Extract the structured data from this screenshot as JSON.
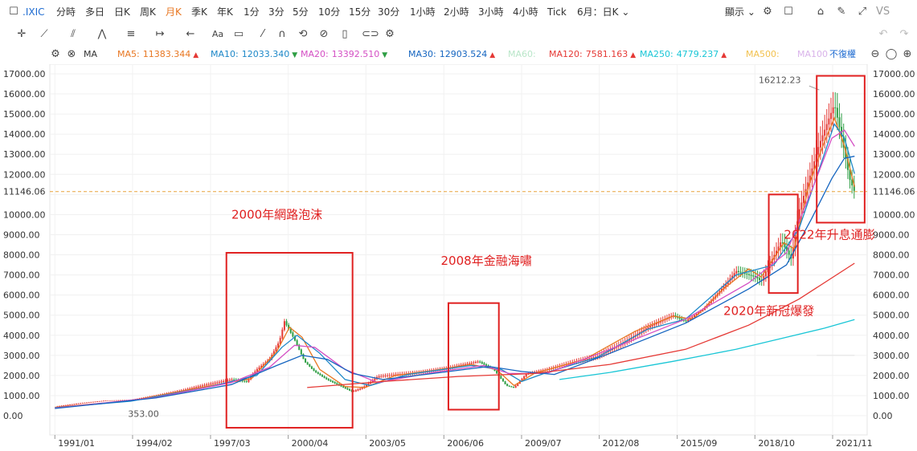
{
  "topbar": {
    "symbol": ".IXIC",
    "timeframes": [
      "分時",
      "多日",
      "日K",
      "周K",
      "月K",
      "季K",
      "年K",
      "1分",
      "3分",
      "5分",
      "10分",
      "15分",
      "30分",
      "1小時",
      "2小時",
      "3小時",
      "4小時",
      "Tick",
      "6月：日K"
    ],
    "active_timeframe": "月K",
    "display_label": "顯示",
    "vs_label": "VS"
  },
  "mabar": {
    "type_label": "MA",
    "items": [
      {
        "label": "MA5:",
        "value": "11383.344",
        "color": "#e87722",
        "arrow": "▲",
        "arrow_color": "#e53935"
      },
      {
        "label": "MA10:",
        "value": "12033.340",
        "color": "#1e88c8",
        "arrow": "▼",
        "arrow_color": "#2e9e44"
      },
      {
        "label": "MA20:",
        "value": "13392.510",
        "color": "#d44fc4",
        "arrow": "▼",
        "arrow_color": "#2e9e44"
      },
      {
        "label": "MA30:",
        "value": "12903.524",
        "color": "#1565c0",
        "arrow": "▲",
        "arrow_color": "#e53935"
      },
      {
        "label": "MA60:",
        "value": "",
        "color": "#b9e6c9",
        "arrow": "",
        "arrow_color": ""
      },
      {
        "label": "MA120:",
        "value": "7581.163",
        "color": "#e53935",
        "arrow": "▲",
        "arrow_color": "#e53935"
      },
      {
        "label": "MA250:",
        "value": "4779.237",
        "color": "#19c6d6",
        "arrow": "▲",
        "arrow_color": "#e53935"
      },
      {
        "label": "MA500:",
        "value": "",
        "color": "#f2c14e",
        "arrow": "",
        "arrow_color": ""
      },
      {
        "label": "MA100",
        "value": "",
        "color": "#d9b3ea",
        "arrow": "",
        "arrow_color": ""
      }
    ],
    "adjust_label": "不復權"
  },
  "chart_data": {
    "type": "line",
    "y_ticks": [
      "17000.00",
      "16000.00",
      "15000.00",
      "14000.00",
      "13000.00",
      "12000.00",
      "11000.00",
      "10000.00",
      "9000.00",
      "8000.00",
      "7000.00",
      "6000.00",
      "5000.00",
      "4000.00",
      "3000.00",
      "2000.00",
      "1000.00",
      "0.00"
    ],
    "x_ticks": [
      "1991/01",
      "1994/02",
      "1997/03",
      "2000/04",
      "2003/05",
      "2006/06",
      "2009/07",
      "2012/08",
      "2015/09",
      "2018/10",
      "2021/11"
    ],
    "ylim": [
      0,
      17000
    ],
    "xlim": [
      1990.8,
      2023.2
    ],
    "current_price": "11146.06",
    "current_value": 11146.06,
    "high_label": "16212.23",
    "low_label": "353.00",
    "price_series": {
      "name": "",
      "x": [
        1991.0,
        1992.0,
        1993.0,
        1994.0,
        1995.0,
        1996.0,
        1997.0,
        1998.0,
        1998.6,
        1999.0,
        1999.5,
        1999.9,
        2000.1,
        2000.5,
        2000.9,
        2001.3,
        2001.8,
        2002.3,
        2002.8,
        2003.2,
        2003.8,
        2004.5,
        2005.5,
        2006.5,
        2007.0,
        2007.8,
        2008.4,
        2008.9,
        2009.2,
        2009.7,
        2010.5,
        2011.5,
        2012.5,
        2013.5,
        2014.5,
        2015.5,
        2016.0,
        2016.7,
        2017.5,
        2018.0,
        2018.8,
        2019.0,
        2019.8,
        2020.2,
        2020.5,
        2020.9,
        2021.3,
        2021.9,
        2022.2,
        2022.5,
        2022.7
      ],
      "values": [
        450,
        620,
        750,
        780,
        1000,
        1250,
        1550,
        1800,
        1700,
        2300,
        2800,
        3700,
        4700,
        3800,
        2700,
        2200,
        1800,
        1500,
        1200,
        1400,
        1950,
        2050,
        2150,
        2350,
        2500,
        2700,
        2300,
        1500,
        1400,
        2100,
        2300,
        2650,
        2950,
        3600,
        4400,
        5000,
        4700,
        5300,
        6400,
        7200,
        6900,
        6700,
        8700,
        7800,
        10200,
        11800,
        13500,
        15500,
        13800,
        11800,
        11146
      ]
    },
    "series": [
      {
        "name": "MA5",
        "color": "#e87722",
        "x": [
          1991.0,
          1994.0,
          1997.0,
          1998.8,
          1999.8,
          2000.3,
          2000.8,
          2001.5,
          2002.5,
          2003.3,
          2004.5,
          2006.0,
          2007.5,
          2008.5,
          2009.2,
          2010.0,
          2012.0,
          2014.0,
          2015.5,
          2016.3,
          2017.5,
          2018.5,
          2019.0,
          2019.9,
          2020.3,
          2020.9,
          2021.5,
          2021.9,
          2022.3,
          2022.7
        ],
        "values": [
          420,
          740,
          1450,
          1850,
          3200,
          4400,
          3900,
          2300,
          1450,
          1400,
          2000,
          2250,
          2550,
          2300,
          1500,
          2100,
          2800,
          4200,
          4950,
          4800,
          6300,
          7300,
          6900,
          8600,
          8300,
          11500,
          13600,
          14800,
          13400,
          11383
        ]
      },
      {
        "name": "MA10",
        "color": "#1e88c8",
        "x": [
          1991.0,
          1994.0,
          1997.0,
          1999.0,
          2000.0,
          2000.6,
          2001.5,
          2002.5,
          2003.5,
          2005.0,
          2007.5,
          2008.7,
          2009.5,
          2010.5,
          2012.5,
          2014.5,
          2016.0,
          2018.0,
          2019.5,
          2020.5,
          2021.5,
          2021.9,
          2022.3,
          2022.7
        ],
        "values": [
          400,
          720,
          1400,
          2000,
          3400,
          4000,
          3100,
          1800,
          1500,
          2050,
          2500,
          2300,
          1700,
          2150,
          2900,
          4300,
          4800,
          7000,
          7500,
          9300,
          13000,
          14500,
          13800,
          12033
        ]
      },
      {
        "name": "MA20",
        "color": "#d44fc4",
        "x": [
          1991.0,
          1995.0,
          1998.0,
          1999.5,
          2000.5,
          2001.3,
          2002.5,
          2003.8,
          2006.0,
          2008.0,
          2009.0,
          2010.5,
          2013.0,
          2016.0,
          2018.5,
          2020.0,
          2021.0,
          2021.8,
          2022.3,
          2022.7
        ],
        "values": [
          380,
          900,
          1650,
          2400,
          3500,
          3400,
          2300,
          1650,
          2150,
          2500,
          2100,
          2100,
          3300,
          4800,
          6600,
          8100,
          11200,
          13800,
          14200,
          13392
        ]
      },
      {
        "name": "MA30",
        "color": "#1565c0",
        "x": [
          1991.0,
          1995.0,
          1998.0,
          1999.8,
          2000.8,
          2001.8,
          2002.8,
          2004.0,
          2006.0,
          2008.2,
          2009.5,
          2010.8,
          2013.0,
          2016.0,
          2018.5,
          2020.0,
          2021.0,
          2021.8,
          2022.3,
          2022.7
        ],
        "values": [
          360,
          880,
          1550,
          2500,
          3000,
          2800,
          2100,
          1800,
          2100,
          2450,
          2200,
          2050,
          3100,
          4600,
          6300,
          7500,
          9800,
          11800,
          12800,
          12903
        ]
      },
      {
        "name": "MA120",
        "color": "#e53935",
        "x": [
          2001.0,
          2004.0,
          2007.0,
          2010.0,
          2013.0,
          2016.0,
          2018.5,
          2020.5,
          2022.7
        ],
        "values": [
          1400,
          1700,
          1950,
          2100,
          2550,
          3300,
          4500,
          5800,
          7581
        ]
      },
      {
        "name": "MA250",
        "color": "#19c6d6",
        "x": [
          2011.0,
          2013.0,
          2015.5,
          2018.0,
          2020.0,
          2021.5,
          2022.7
        ],
        "values": [
          1800,
          2150,
          2700,
          3300,
          3900,
          4350,
          4779
        ]
      },
      {
        "name": "MA500",
        "color": "#e8e8e8",
        "x": [
          2021.2,
          2022.7
        ],
        "values": [
          3000,
          3000
        ]
      }
    ],
    "annotations": [
      {
        "text": "2000年網路泡沫",
        "box_x": [
          1997.8,
          2002.8
        ],
        "box_y": [
          -600,
          8100
        ],
        "label_x": 1998.0,
        "label_y": 9800
      },
      {
        "text": "2008年金融海嘯",
        "box_x": [
          2006.6,
          2008.6
        ],
        "box_y": [
          300,
          5600
        ],
        "label_x": 2006.3,
        "label_y": 7500
      },
      {
        "text": "2020年新冠爆發",
        "box_x": [
          2019.3,
          2020.45
        ],
        "box_y": [
          6100,
          11000
        ],
        "label_x": 2017.5,
        "label_y": 5000
      },
      {
        "text": "2022年升息通膨",
        "box_x": [
          2021.2,
          2023.1
        ],
        "box_y": [
          9600,
          16900
        ],
        "label_x": 2019.9,
        "label_y": 8800
      }
    ]
  }
}
